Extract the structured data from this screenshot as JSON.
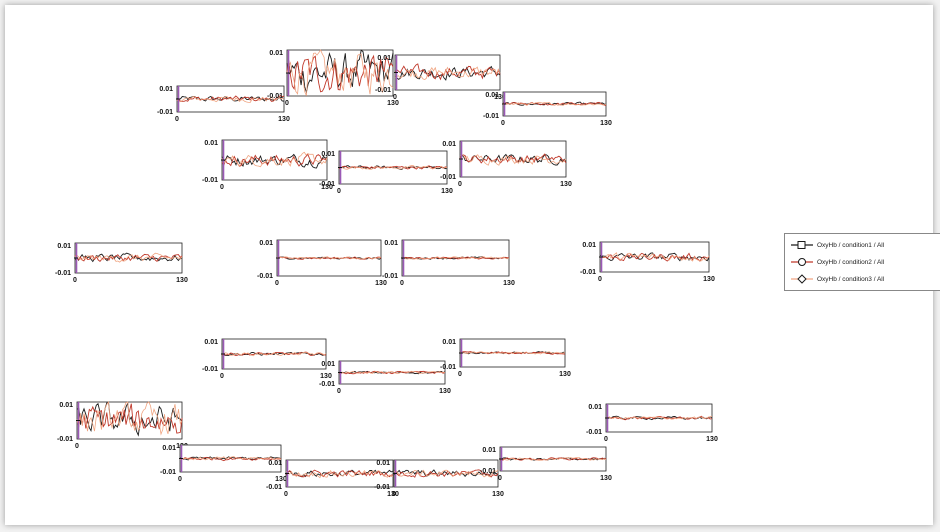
{
  "chart_data": {
    "type": "line",
    "y_ticks": [
      "0.01",
      "-0.01"
    ],
    "x_ticks": [
      "0",
      "130"
    ],
    "xlim": [
      0,
      130
    ],
    "ylim": [
      -0.01,
      0.01
    ],
    "series": [
      {
        "name": "OxyHb / condition1 / All",
        "color": "#1a1a1a",
        "marker": "square"
      },
      {
        "name": "OxyHb / condition2 / All",
        "color": "#c0392b",
        "marker": "circle"
      },
      {
        "name": "OxyHb / condition3 / All",
        "color": "#f0a582",
        "marker": "diamond"
      }
    ],
    "panels": [
      {
        "amp": 0.0022
      },
      {
        "amp": 0.0085
      },
      {
        "amp": 0.0035
      },
      {
        "amp": 0.0012
      },
      {
        "amp": 0.0028
      },
      {
        "amp": 0.001
      },
      {
        "amp": 0.0025
      },
      {
        "amp": 0.0025
      },
      {
        "amp": 0.0006
      },
      {
        "amp": 0.0006
      },
      {
        "amp": 0.0025
      },
      {
        "amp": 0.001
      },
      {
        "amp": 0.001
      },
      {
        "amp": 0.0008
      },
      {
        "amp": 0.008
      },
      {
        "amp": 0.0012
      },
      {
        "amp": 0.0025
      },
      {
        "amp": 0.0025
      },
      {
        "amp": 0.001
      },
      {
        "amp": 0.001
      },
      {
        "amp": 0.001
      }
    ],
    "stimulus_marker_color": "#9b59b6"
  },
  "legend": {
    "entries": [
      "OxyHb / condition1 / All",
      "OxyHb / condition2 / All",
      "OxyHb / condition3 / All"
    ]
  }
}
